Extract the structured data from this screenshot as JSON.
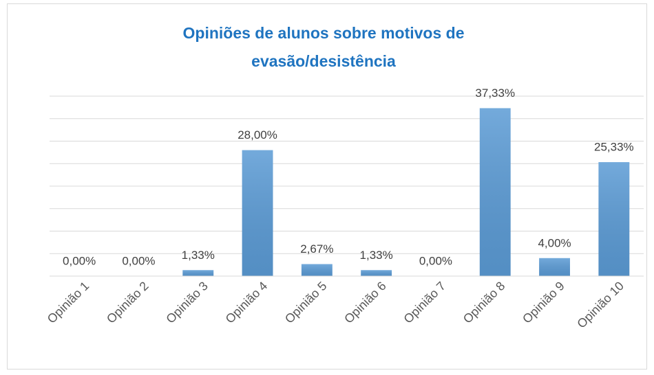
{
  "chart_data": {
    "type": "bar",
    "title": [
      "Opiniões de alunos sobre motivos de",
      "evasão/desistência"
    ],
    "categories": [
      "Opinião 1",
      "Opinião 2",
      "Opinião 3",
      "Opinião 4",
      "Opinião 5",
      "Opinião 6",
      "Opinião 7",
      "Opinião 8",
      "Opinião 9",
      "Opinião 10"
    ],
    "values": [
      0,
      0,
      1.33,
      28,
      2.67,
      1.33,
      0,
      37.33,
      4,
      25.33
    ],
    "value_labels": [
      "0,00%",
      "0,00%",
      "1,33%",
      "28,00%",
      "2,67%",
      "1,33%",
      "0,00%",
      "37,33%",
      "4,00%",
      "25,33%"
    ],
    "color": "#5b9bd5",
    "ylim": [
      0,
      40
    ],
    "yticks": [
      0,
      5,
      10,
      15,
      20,
      25,
      30,
      35,
      40
    ],
    "grid": true
  }
}
